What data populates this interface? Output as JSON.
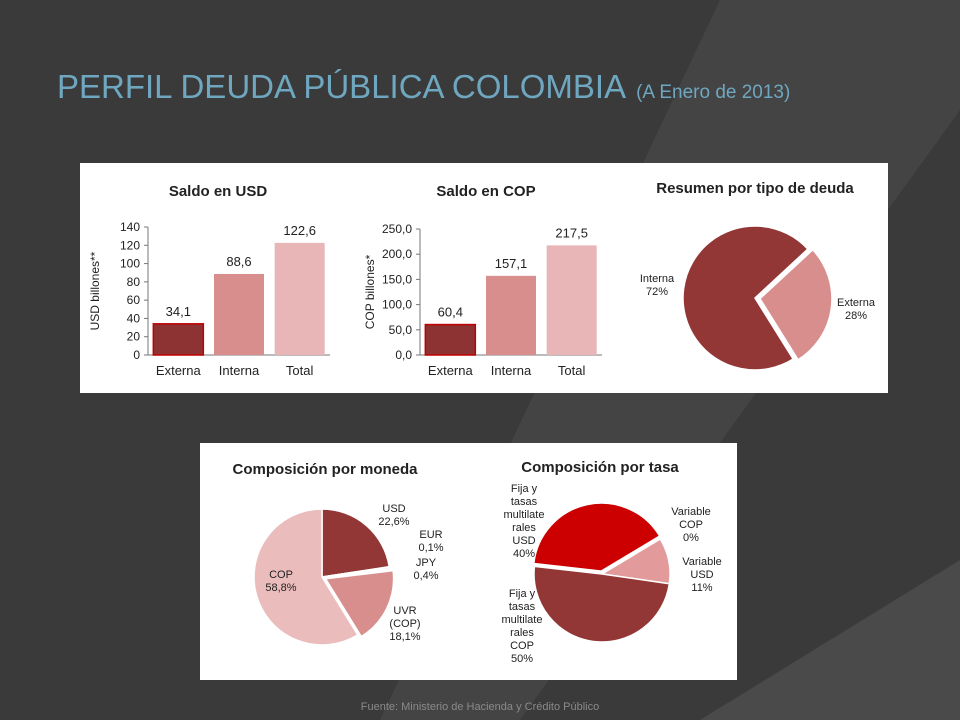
{
  "slide": {
    "title": "PERFIL DEUDA PÚBLICA COLOMBIA",
    "subtitle": "(A Enero de 2013)",
    "source": "Fuente: Ministerio de Hacienda y Crédito Público"
  },
  "chart_data": [
    {
      "type": "bar",
      "title": "Saldo en USD",
      "ylabel": "USD billones**",
      "categories": [
        "Externa",
        "Interna",
        "Total"
      ],
      "values": [
        34.1,
        88.6,
        122.6
      ],
      "value_labels": [
        "34,1",
        "88,6",
        "122,6"
      ],
      "colors": [
        "#8e3333",
        "#d98e8e",
        "#e8b6b6"
      ],
      "ylim": [
        0,
        140
      ],
      "yticks": [
        0,
        20,
        40,
        60,
        80,
        100,
        120,
        140
      ]
    },
    {
      "type": "bar",
      "title": "Saldo en COP",
      "ylabel": "COP billones*",
      "categories": [
        "Externa",
        "Interna",
        "Total"
      ],
      "values": [
        60.4,
        157.1,
        217.5
      ],
      "value_labels": [
        "60,4",
        "157,1",
        "217,5"
      ],
      "colors": [
        "#8e3333",
        "#d98e8e",
        "#e8b6b6"
      ],
      "ylim": [
        0,
        250
      ],
      "yticks": [
        {
          "value": 0,
          "label": "0,0"
        },
        {
          "value": 50,
          "label": "50,0"
        },
        {
          "value": 100,
          "label": "100,0"
        },
        {
          "value": 150,
          "label": "150,0"
        },
        {
          "value": 200,
          "label": "200,0"
        },
        {
          "value": 250,
          "label": "250,0"
        }
      ]
    },
    {
      "type": "pie",
      "title": "Resumen por tipo de deuda",
      "categories": [
        "Interna",
        "Externa"
      ],
      "values": [
        72,
        28
      ],
      "value_labels": [
        "72%",
        "28%"
      ],
      "colors": [
        "#923636",
        "#d98e8e"
      ]
    },
    {
      "type": "pie",
      "title": "Composición por moneda",
      "categories": [
        "USD",
        "EUR",
        "JPY",
        "UVR\n(COP)",
        "COP"
      ],
      "values": [
        22.6,
        0.1,
        0.4,
        18.1,
        58.8
      ],
      "value_labels": [
        "22,6%",
        "0,1%",
        "0,4%",
        "18,1%",
        "58,8%"
      ],
      "colors": [
        "#923636",
        "#b05050",
        "#c06868",
        "#d98e8e",
        "#ebbcbc"
      ]
    },
    {
      "type": "pie",
      "title": "Composición por tasa",
      "categories": [
        "Variable\nCOP",
        "Variable\nUSD",
        "Fija y\ntasas\nmultilate\nrales\nCOP",
        "Fija y\ntasas\nmultilate\nrales\nUSD"
      ],
      "values": [
        0,
        11,
        50,
        40
      ],
      "value_labels": [
        "0%",
        "11%",
        "50%",
        "40%"
      ],
      "colors": [
        "#e6a0a0",
        "#e29a9a",
        "#923636",
        "#cc0000"
      ]
    }
  ]
}
